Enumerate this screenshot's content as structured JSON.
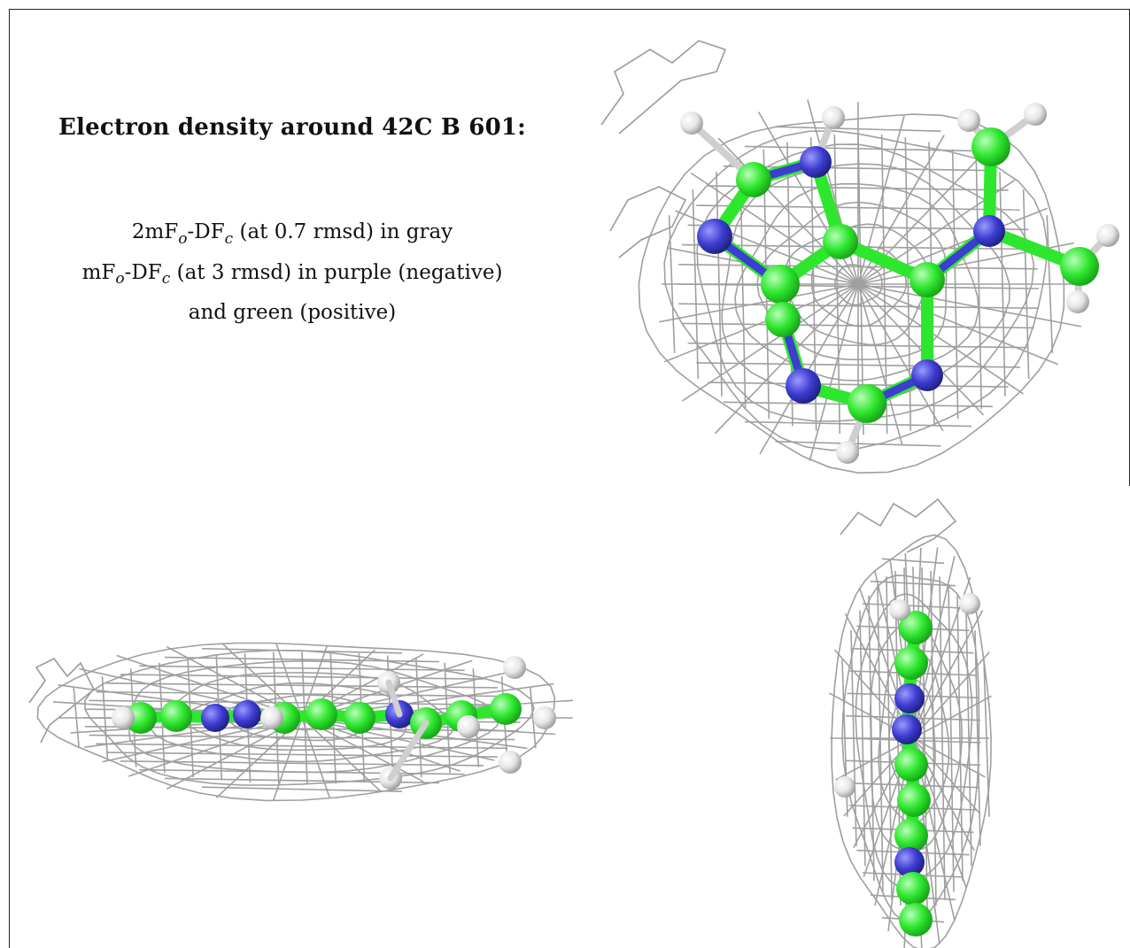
{
  "caption": {
    "title": "Electron density around 42C B 601:",
    "line1": {
      "pre": "2mF",
      "sub1": "o",
      "mid": "-DF",
      "sub2": "c",
      "post": " (at 0.7 rmsd) in gray"
    },
    "line2": {
      "pre": "mF",
      "sub1": "o",
      "mid": "-DF",
      "sub2": "c",
      "post": " (at 3 rmsd) in purple (negative)"
    },
    "line3": "and green (positive)"
  },
  "colors": {
    "mesh": "#9a9a9a",
    "negative": "#3d3dd1",
    "positive": "#2ee62e",
    "hydrogen": "#e6e6e6",
    "border": "#222222"
  },
  "panels": [
    "top-view",
    "side-view",
    "edge-view"
  ]
}
